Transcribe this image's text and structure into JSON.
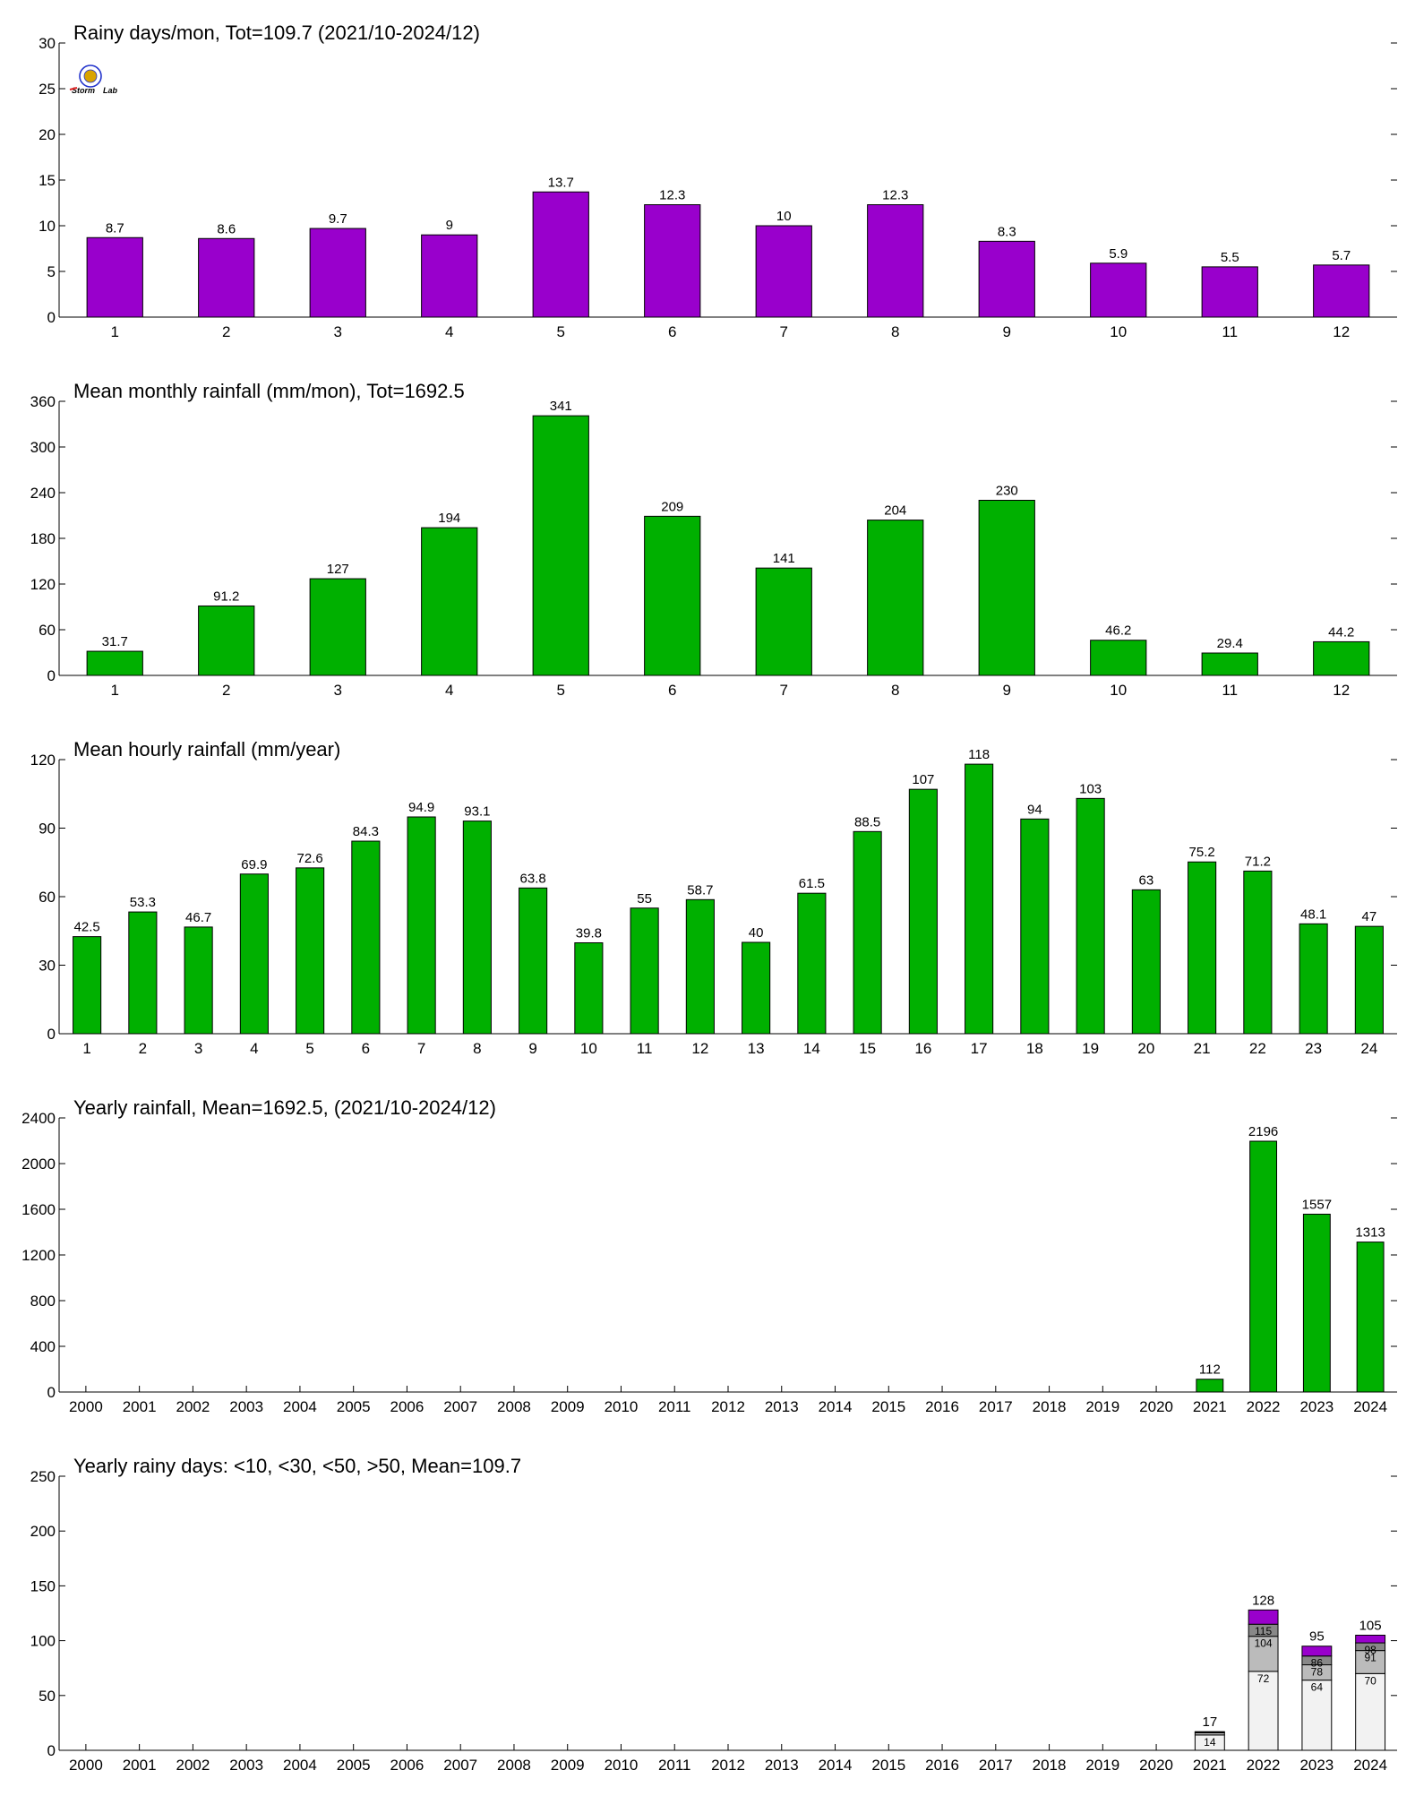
{
  "logo": {
    "text_left": "Storm",
    "text_right": "Lab",
    "colors": {
      "blue": "#2233cc",
      "red": "#dd2222",
      "green": "#22aa22",
      "gold": "#d9a400"
    }
  },
  "colors": {
    "purple": "#9900cc",
    "green": "#00b000",
    "bin1": "#f2f2f2",
    "bin2": "#bbbbbb",
    "bin3": "#888888"
  },
  "chart_data": [
    {
      "type": "bar",
      "title": "Rainy days/mon, Tot=109.7 (2021/10-2024/12)",
      "categories": [
        "1",
        "2",
        "3",
        "4",
        "5",
        "6",
        "7",
        "8",
        "9",
        "10",
        "11",
        "12"
      ],
      "values": [
        8.7,
        8.6,
        9.7,
        9,
        13.7,
        12.3,
        10,
        12.3,
        8.3,
        5.9,
        5.5,
        5.7
      ],
      "value_labels": [
        "8.7",
        "8.6",
        "9.7",
        "9",
        "13.7",
        "12.3",
        "10",
        "12.3",
        "8.3",
        "5.9",
        "5.5",
        "5.7"
      ],
      "ylim": [
        0,
        30
      ],
      "yticks": [
        0,
        5,
        10,
        15,
        20,
        25,
        30
      ],
      "color": "#9900cc"
    },
    {
      "type": "bar",
      "title": "Mean monthly rainfall (mm/mon), Tot=1692.5",
      "categories": [
        "1",
        "2",
        "3",
        "4",
        "5",
        "6",
        "7",
        "8",
        "9",
        "10",
        "11",
        "12"
      ],
      "values": [
        31.7,
        91.2,
        127,
        194,
        341,
        209,
        141,
        204,
        230,
        46.2,
        29.4,
        44.2
      ],
      "value_labels": [
        "31.7",
        "91.2",
        "127",
        "194",
        "341",
        "209",
        "141",
        "204",
        "230",
        "46.2",
        "29.4",
        "44.2"
      ],
      "ylim": [
        0,
        360
      ],
      "yticks": [
        0,
        60,
        120,
        180,
        240,
        300,
        360
      ],
      "color": "#00b000"
    },
    {
      "type": "bar",
      "title": "Mean hourly rainfall (mm/year)",
      "categories": [
        "1",
        "2",
        "3",
        "4",
        "5",
        "6",
        "7",
        "8",
        "9",
        "10",
        "11",
        "12",
        "13",
        "14",
        "15",
        "16",
        "17",
        "18",
        "19",
        "20",
        "21",
        "22",
        "23",
        "24"
      ],
      "values": [
        42.5,
        53.3,
        46.7,
        69.9,
        72.6,
        84.3,
        94.9,
        93.1,
        63.8,
        39.8,
        55,
        58.7,
        40,
        61.5,
        88.5,
        107,
        118,
        94,
        103,
        63,
        75.2,
        71.2,
        48.1,
        47
      ],
      "value_labels": [
        "42.5",
        "53.3",
        "46.7",
        "69.9",
        "72.6",
        "84.3",
        "94.9",
        "93.1",
        "63.8",
        "39.8",
        "55",
        "58.7",
        "40",
        "61.5",
        "88.5",
        "107",
        "118",
        "94",
        "103",
        "63",
        "75.2",
        "71.2",
        "48.1",
        "47"
      ],
      "ylim": [
        0,
        120
      ],
      "yticks": [
        0,
        30,
        60,
        90,
        120
      ],
      "color": "#00b000"
    },
    {
      "type": "bar",
      "title": "Yearly rainfall, Mean=1692.5, (2021/10-2024/12)",
      "categories": [
        "2000",
        "2001",
        "2002",
        "2003",
        "2004",
        "2005",
        "2006",
        "2007",
        "2008",
        "2009",
        "2010",
        "2011",
        "2012",
        "2013",
        "2014",
        "2015",
        "2016",
        "2017",
        "2018",
        "2019",
        "2020",
        "2021",
        "2022",
        "2023",
        "2024"
      ],
      "values": [
        null,
        null,
        null,
        null,
        null,
        null,
        null,
        null,
        null,
        null,
        null,
        null,
        null,
        null,
        null,
        null,
        null,
        null,
        null,
        null,
        null,
        112,
        2196,
        1557,
        1313
      ],
      "value_labels": [
        "",
        "",
        "",
        "",
        "",
        "",
        "",
        "",
        "",
        "",
        "",
        "",
        "",
        "",
        "",
        "",
        "",
        "",
        "",
        "",
        "",
        "112",
        "2196",
        "1557",
        "1313"
      ],
      "ylim": [
        0,
        2400
      ],
      "yticks": [
        0,
        400,
        800,
        1200,
        1600,
        2000,
        2400
      ],
      "color": "#00b000"
    },
    {
      "type": "bar",
      "stacked": true,
      "title": "Yearly rainy days: <10, <30, <50, >50, Mean=109.7",
      "categories": [
        "2000",
        "2001",
        "2002",
        "2003",
        "2004",
        "2005",
        "2006",
        "2007",
        "2008",
        "2009",
        "2010",
        "2011",
        "2012",
        "2013",
        "2014",
        "2015",
        "2016",
        "2017",
        "2018",
        "2019",
        "2020",
        "2021",
        "2022",
        "2023",
        "2024"
      ],
      "ylim": [
        0,
        250
      ],
      "yticks": [
        0,
        50,
        100,
        150,
        200,
        250
      ],
      "stacks": [
        {
          "category": "2021",
          "total": 17,
          "total_label": "17",
          "cumulative": [
            14,
            16,
            16.5,
            17
          ],
          "segment_labels": [
            "14",
            "",
            "",
            ""
          ]
        },
        {
          "category": "2022",
          "total": 128,
          "total_label": "128",
          "cumulative": [
            72,
            104,
            115,
            128
          ],
          "segment_labels": [
            "72",
            "104",
            "115",
            ""
          ]
        },
        {
          "category": "2023",
          "total": 95,
          "total_label": "95",
          "cumulative": [
            64,
            78,
            86,
            95
          ],
          "segment_labels": [
            "64",
            "78",
            "86",
            ""
          ]
        },
        {
          "category": "2024",
          "total": 105,
          "total_label": "105",
          "cumulative": [
            70,
            91,
            98,
            105
          ],
          "segment_labels": [
            "70",
            "91",
            "98",
            ""
          ]
        }
      ],
      "segment_colors": [
        "#f2f2f2",
        "#bbbbbb",
        "#888888",
        "#9900cc"
      ]
    }
  ]
}
